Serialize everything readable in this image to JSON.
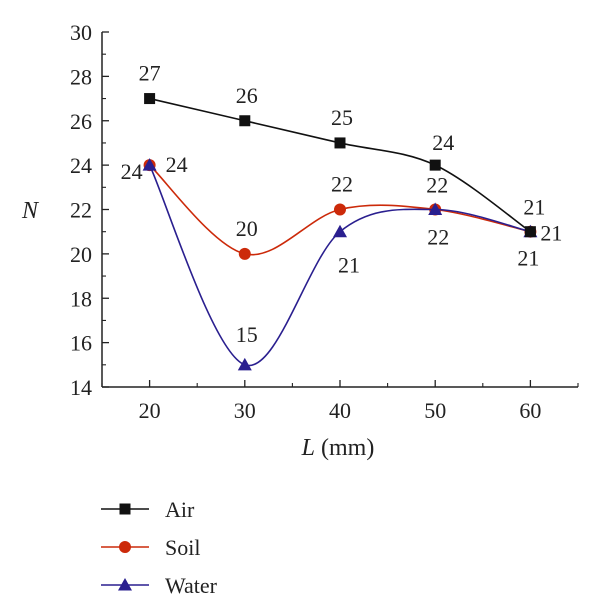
{
  "chart_data": {
    "type": "line",
    "xlabel_var": "L",
    "xlabel_unit": " (mm)",
    "ylabel": "N",
    "x": [
      20,
      30,
      40,
      50,
      60
    ],
    "xlim": [
      15,
      65
    ],
    "ylim": [
      14,
      30
    ],
    "xticks": [
      "20",
      "30",
      "40",
      "50",
      "60"
    ],
    "yticks": [
      "14",
      "16",
      "18",
      "20",
      "22",
      "24",
      "26",
      "28",
      "30"
    ],
    "grid": false,
    "legend_position": "bottom",
    "series": [
      {
        "name": "Air",
        "values": [
          27,
          26,
          25,
          24,
          21
        ],
        "labels": [
          "27",
          "26",
          "25",
          "24",
          "21"
        ],
        "color": "#111111",
        "marker": "square"
      },
      {
        "name": "Soil",
        "values": [
          24,
          20,
          22,
          22,
          21
        ],
        "labels": [
          "24",
          "20",
          "22",
          "22",
          "21"
        ],
        "color": "#cc2a0a",
        "marker": "circle"
      },
      {
        "name": "Water",
        "values": [
          24,
          15,
          21,
          22,
          21
        ],
        "labels": [
          "24",
          "15",
          "21",
          "22",
          "21"
        ],
        "color": "#2a1f8f",
        "marker": "triangle"
      }
    ]
  }
}
